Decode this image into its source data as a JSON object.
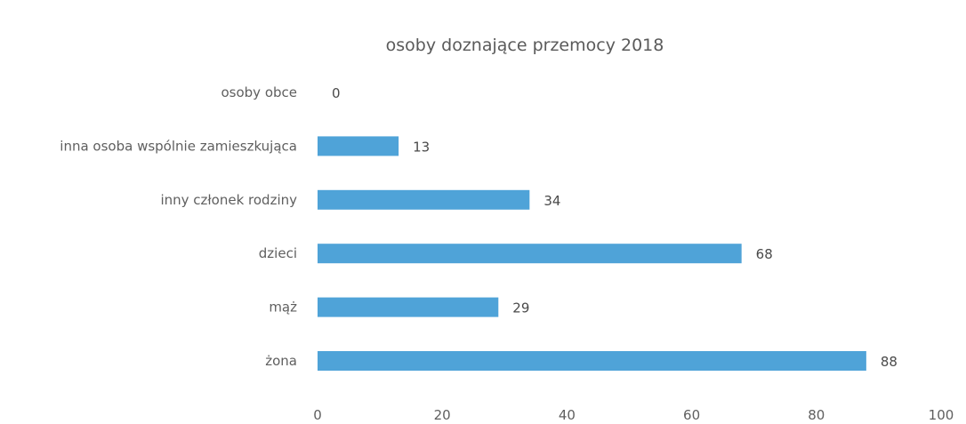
{
  "chart_data": {
    "type": "bar",
    "orientation": "horizontal",
    "title": "osoby doznające przemocy 2018",
    "xlabel": "",
    "ylabel": "",
    "categories": [
      "osoby obce",
      "inna osoba wspólnie zamieszkująca",
      "inny członek rodziny",
      "dzieci",
      "mąż",
      "żona"
    ],
    "values": [
      0,
      13,
      34,
      68,
      29,
      88
    ],
    "xlim": [
      0,
      100
    ],
    "xticks": [
      0,
      20,
      40,
      60,
      80,
      100
    ],
    "grid": false,
    "legend": "none",
    "data_labels": true,
    "bar_color": "#4fa3d8"
  }
}
